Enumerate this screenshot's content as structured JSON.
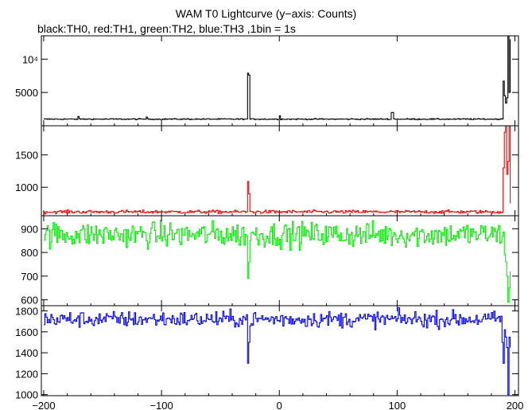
{
  "chart_data": {
    "type": "line",
    "title": "WAM T0 Lightcurve (y−axis: Counts)",
    "subtitle": "black:TH0, red:TH1, green:TH2, blue:TH3 ,1bin = 1s",
    "xlabel": "",
    "xlim": [
      -202,
      203
    ],
    "x_ticks": [
      -200,
      -100,
      0,
      100,
      200
    ],
    "x_tick_labels": [
      "−200",
      "−100",
      "0",
      "100",
      "200"
    ],
    "grid": false,
    "legend": "none",
    "bin_size_s": 1,
    "panels": [
      {
        "name": "TH0",
        "color": "#000000",
        "ylim": [
          0,
          13500
        ],
        "y_ticks": [
          5000,
          10000
        ],
        "y_tick_labels": [
          "5000",
          "10⁴"
        ],
        "baseline": 1000,
        "noise": 60,
        "spikes": [
          {
            "x": -171,
            "y": 1400
          },
          {
            "x": -113,
            "y": 1300
          },
          {
            "x": -27,
            "y": 7900
          },
          {
            "x": -26,
            "y": 7600
          },
          {
            "x": 0,
            "y": 1500
          },
          {
            "x": 95,
            "y": 2000
          },
          {
            "x": 96,
            "y": 2000
          },
          {
            "x": 190,
            "y": 6700
          },
          {
            "x": 191,
            "y": 4500
          },
          {
            "x": 192,
            "y": 3400
          },
          {
            "x": 193,
            "y": 4200
          },
          {
            "x": 194,
            "y": 13500
          },
          {
            "x": 195,
            "y": 5000
          },
          {
            "x": 196,
            "y": 13000
          }
        ]
      },
      {
        "name": "TH1",
        "color": "#ff0000",
        "ylim": [
          560,
          1950
        ],
        "y_ticks": [
          1000,
          1500
        ],
        "y_tick_labels": [
          "1000",
          "1500"
        ],
        "baseline": 620,
        "noise": 18,
        "spikes": [
          {
            "x": -27,
            "y": 1090
          },
          {
            "x": -26,
            "y": 900
          },
          {
            "x": 190,
            "y": 1300
          },
          {
            "x": 191,
            "y": 1850
          },
          {
            "x": 192,
            "y": 1950
          },
          {
            "x": 193,
            "y": 1200
          },
          {
            "x": 194,
            "y": 1400
          },
          {
            "x": 195,
            "y": 1950
          },
          {
            "x": 196,
            "y": 750
          }
        ]
      },
      {
        "name": "TH2",
        "color": "#00ee00",
        "ylim": [
          575,
          955
        ],
        "y_ticks": [
          600,
          700,
          800,
          900
        ],
        "y_tick_labels": [
          "600",
          "700",
          "800",
          "900"
        ],
        "baseline": 875,
        "noise": 38,
        "spikes": [
          {
            "x": -27,
            "y": 690
          },
          {
            "x": -26,
            "y": 760
          },
          {
            "x": 191,
            "y": 790
          },
          {
            "x": 192,
            "y": 760
          },
          {
            "x": 193,
            "y": 700
          },
          {
            "x": 194,
            "y": 590
          },
          {
            "x": 195,
            "y": 650
          },
          {
            "x": 196,
            "y": 720
          }
        ]
      },
      {
        "name": "TH3",
        "color": "#0000ff",
        "ylim": [
          990,
          1850
        ],
        "y_ticks": [
          1000,
          1200,
          1400,
          1600,
          1800
        ],
        "y_tick_labels": [
          "1000",
          "1200",
          "1400",
          "1600",
          "1800"
        ],
        "baseline": 1720,
        "noise": 55,
        "spikes": [
          {
            "x": -27,
            "y": 1300
          },
          {
            "x": -26,
            "y": 1500
          },
          {
            "x": 189,
            "y": 1500
          },
          {
            "x": 190,
            "y": 1300
          },
          {
            "x": 191,
            "y": 1620
          },
          {
            "x": 192,
            "y": 1550
          },
          {
            "x": 193,
            "y": 1450
          },
          {
            "x": 194,
            "y": 1000
          },
          {
            "x": 195,
            "y": 1550
          },
          {
            "x": 196,
            "y": 1450
          }
        ]
      }
    ]
  }
}
